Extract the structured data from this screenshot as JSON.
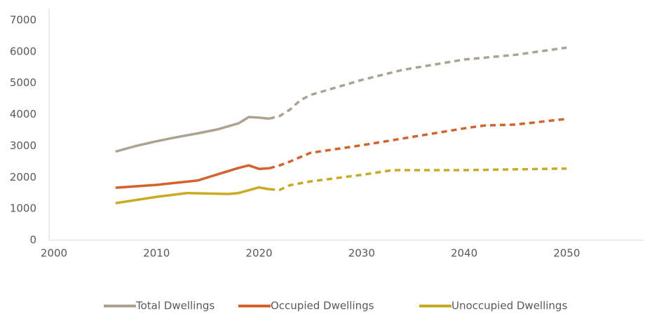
{
  "chart_data": {
    "type": "line",
    "xlim": [
      2000,
      2057.5
    ],
    "xticks": [
      2000,
      2010,
      2020,
      2030,
      2040,
      2050
    ],
    "ylim": [
      0,
      7400
    ],
    "yticks": [
      0,
      1000,
      2000,
      3000,
      4000,
      5000,
      6000,
      7000
    ],
    "grid": false,
    "legend": "bottom",
    "series": [
      {
        "name": "Total Dwellings",
        "color": "#aba390",
        "dash_from": 2021,
        "x": [
          2006,
          2008,
          2010,
          2012,
          2014,
          2016,
          2018,
          2019,
          2020,
          2021,
          2022,
          2023,
          2024,
          2025,
          2030,
          2034,
          2040,
          2045,
          2050
        ],
        "values": [
          2820,
          3000,
          3150,
          3280,
          3400,
          3530,
          3720,
          3920,
          3900,
          3870,
          3950,
          4150,
          4450,
          4620,
          5100,
          5420,
          5750,
          5900,
          6130
        ]
      },
      {
        "name": "Occupied Dwellings",
        "color": "#d4622a",
        "dash_from": 2021,
        "x": [
          2006,
          2010,
          2014,
          2016,
          2018,
          2019,
          2020,
          2021,
          2022,
          2023,
          2025,
          2030,
          2035,
          2040,
          2042,
          2045,
          2050
        ],
        "values": [
          1670,
          1760,
          1900,
          2100,
          2300,
          2380,
          2270,
          2290,
          2380,
          2500,
          2780,
          3020,
          3290,
          3560,
          3650,
          3680,
          3860
        ]
      },
      {
        "name": "Unoccupied Dwellings",
        "color": "#c9ab22",
        "dash_from": 2021,
        "x": [
          2006,
          2010,
          2013,
          2017,
          2018,
          2020,
          2021,
          2022,
          2023,
          2025,
          2030,
          2033,
          2040,
          2050
        ],
        "values": [
          1180,
          1380,
          1500,
          1470,
          1500,
          1680,
          1620,
          1600,
          1750,
          1870,
          2080,
          2230,
          2230,
          2280
        ]
      }
    ]
  }
}
